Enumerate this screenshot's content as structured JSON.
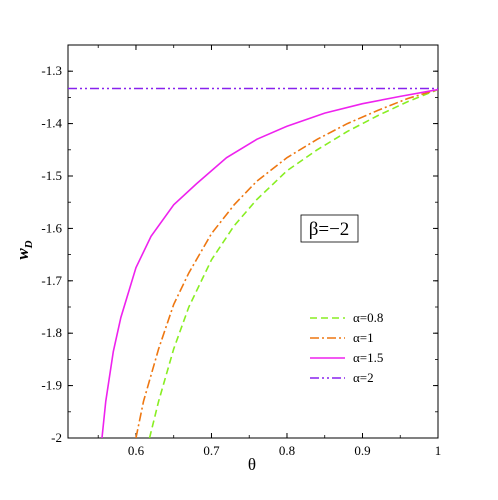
{
  "chart_data": {
    "type": "line",
    "xlabel": "θ",
    "ylabel_main": "w",
    "ylabel_sub": "D",
    "xlim": [
      0.51,
      1.0
    ],
    "ylim": [
      -2.0,
      -1.25
    ],
    "xticks": [
      0.6,
      0.7,
      0.8,
      0.9,
      1.0
    ],
    "xtick_labels": [
      "0.6",
      "0.7",
      "0.8",
      "0.9",
      "1"
    ],
    "yticks": [
      -2.0,
      -1.9,
      -1.8,
      -1.7,
      -1.6,
      -1.5,
      -1.4,
      -1.3
    ],
    "ytick_labels": [
      "-2",
      "-1.9",
      "-1.8",
      "-1.7",
      "-1.6",
      "-1.5",
      "-1.4",
      "-1.3"
    ],
    "grid": false,
    "legend_position": "lower-right",
    "annotation": "β=−2",
    "series": [
      {
        "name": "α=0.8",
        "color": "#88ee22",
        "dash": "dashed",
        "x": [
          0.618,
          0.63,
          0.65,
          0.67,
          0.7,
          0.73,
          0.76,
          0.8,
          0.84,
          0.88,
          0.92,
          0.96,
          1.0
        ],
        "y": [
          -2.0,
          -1.93,
          -1.83,
          -1.75,
          -1.66,
          -1.595,
          -1.545,
          -1.49,
          -1.45,
          -1.415,
          -1.385,
          -1.358,
          -1.335
        ]
      },
      {
        "name": "α=1",
        "color": "#ee7711",
        "dash": "dashdot",
        "x": [
          0.6,
          0.61,
          0.63,
          0.65,
          0.67,
          0.7,
          0.73,
          0.76,
          0.8,
          0.84,
          0.88,
          0.92,
          0.96,
          1.0
        ],
        "y": [
          -2.0,
          -1.93,
          -1.83,
          -1.745,
          -1.685,
          -1.61,
          -1.555,
          -1.51,
          -1.465,
          -1.43,
          -1.4,
          -1.375,
          -1.352,
          -1.335
        ]
      },
      {
        "name": "α=1.5",
        "color": "#ee22ee",
        "dash": "solid",
        "x": [
          0.555,
          0.56,
          0.57,
          0.58,
          0.6,
          0.62,
          0.65,
          0.68,
          0.72,
          0.76,
          0.8,
          0.85,
          0.9,
          0.95,
          1.0
        ],
        "y": [
          -2.0,
          -1.93,
          -1.835,
          -1.77,
          -1.675,
          -1.615,
          -1.555,
          -1.515,
          -1.465,
          -1.43,
          -1.405,
          -1.38,
          -1.362,
          -1.348,
          -1.335
        ]
      },
      {
        "name": "α=2",
        "color": "#8822ee",
        "dash": "dashdotdot",
        "x": [
          0.51,
          1.0
        ],
        "y": [
          -1.333,
          -1.333
        ]
      }
    ]
  }
}
